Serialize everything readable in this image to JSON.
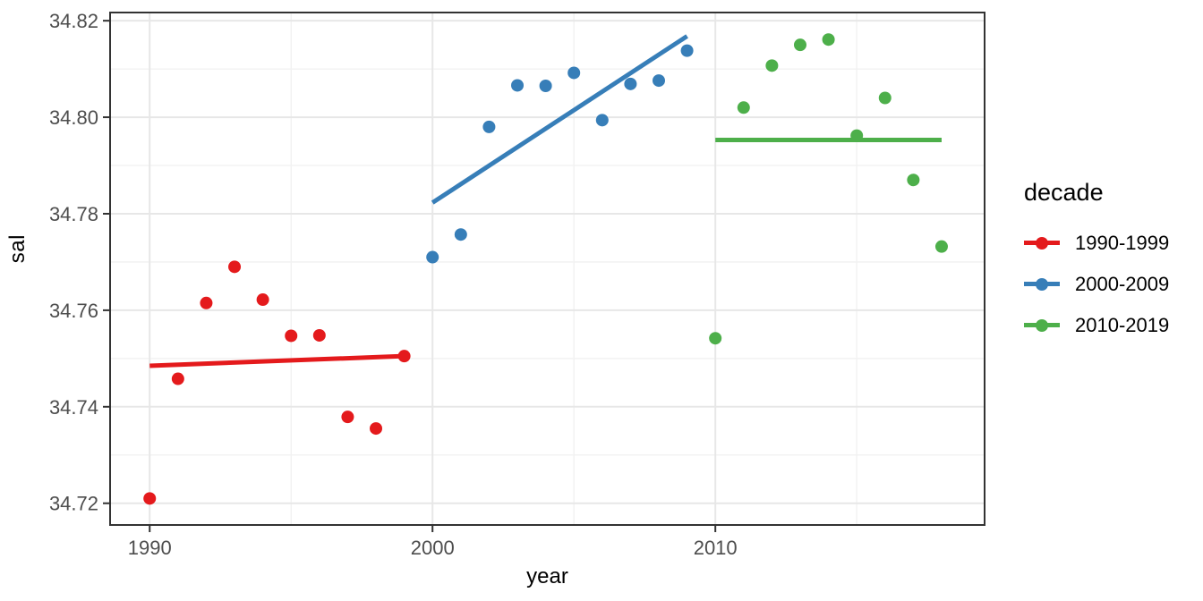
{
  "chart_data": {
    "type": "scatter",
    "xlabel": "year",
    "ylabel": "sal",
    "legend_title": "decade",
    "xlim": [
      1988.6,
      2019.52
    ],
    "ylim": [
      34.7155,
      34.8217
    ],
    "x_ticks": [
      1990,
      2000,
      2010
    ],
    "x_minor_ticks": [
      1995,
      2005,
      2015
    ],
    "y_ticks": [
      34.72,
      34.74,
      34.76,
      34.78,
      34.8,
      34.82
    ],
    "y_minor_ticks": [
      34.73,
      34.75,
      34.77,
      34.79,
      34.81
    ],
    "grid": true,
    "legend_position": "right",
    "series": [
      {
        "name": "1990-1999",
        "color": "#e41a1c",
        "x": [
          1990,
          1991,
          1992,
          1993,
          1994,
          1995,
          1996,
          1997,
          1998,
          1999
        ],
        "y": [
          34.721,
          34.7458,
          34.7615,
          34.769,
          34.7622,
          34.7547,
          34.7548,
          34.7379,
          34.7355,
          34.7505
        ],
        "trend": {
          "x1": 1990,
          "y1": 34.7485,
          "x2": 1999,
          "y2": 34.7505
        }
      },
      {
        "name": "2000-2009",
        "color": "#377eb8",
        "x": [
          2000,
          2001,
          2002,
          2003,
          2004,
          2005,
          2006,
          2007,
          2008,
          2009
        ],
        "y": [
          34.771,
          34.7757,
          34.798,
          34.8066,
          34.8065,
          34.8092,
          34.7994,
          34.8069,
          34.8076,
          34.8138
        ],
        "trend": {
          "x1": 2000,
          "y1": 34.7823,
          "x2": 2009,
          "y2": 34.8168
        }
      },
      {
        "name": "2010-2019",
        "color": "#4daf4a",
        "x": [
          2010,
          2011,
          2012,
          2013,
          2014,
          2015,
          2016,
          2017,
          2018
        ],
        "y": [
          34.7542,
          34.802,
          34.8107,
          34.815,
          34.8161,
          34.7962,
          34.804,
          34.787,
          34.7732
        ],
        "trend": {
          "x1": 2010,
          "y1": 34.7953,
          "x2": 2018,
          "y2": 34.7953
        }
      }
    ],
    "style": {
      "panel_border_color": "#333333",
      "major_grid_color": "#e7e7e7",
      "minor_grid_color": "#f1f1f1",
      "tick_color": "#333333",
      "tick_label_color": "#4d4d4d",
      "point_radius": 7,
      "trend_width": 5
    }
  }
}
